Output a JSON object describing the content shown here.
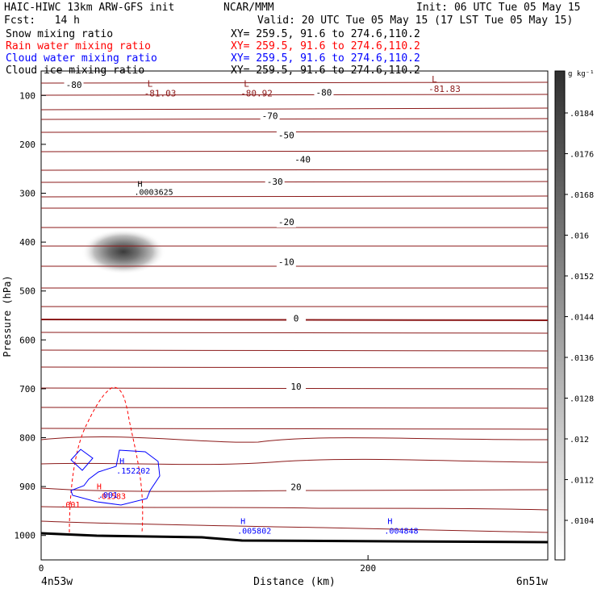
{
  "header": {
    "title": "HAIC-HIWC 13km ARW-GFS init",
    "org": "NCAR/MMM",
    "init": "Init: 06 UTC Tue 05 May 15",
    "fcst": "Fcst:   14 h",
    "valid": "Valid: 20 UTC Tue 05 May 15 (17 LST Tue 05 May 15)",
    "fields": [
      {
        "name": "Snow mixing ratio",
        "xy": "XY= 259.5, 91.6 to 274.6,110.2",
        "color": "#000000"
      },
      {
        "name": "Rain water mixing ratio",
        "xy": "XY= 259.5, 91.6 to 274.6,110.2",
        "color": "#ff0000"
      },
      {
        "name": "Cloud water mixing ratio",
        "xy": "XY= 259.5, 91.6 to 274.6,110.2",
        "color": "#0000ff"
      },
      {
        "name": "Cloud ice mixing ratio",
        "xy": "XY= 259.5, 91.6 to 274.6,110.2",
        "color": "#000000"
      }
    ]
  },
  "chart_data": {
    "type": "cross-section",
    "ylabel": "Pressure (hPa)",
    "xlabel": "Distance (km)",
    "x_left_label": "4n53w",
    "x_right_label": "6n51w",
    "xlim": [
      0,
      310
    ],
    "ylim": [
      1050,
      50
    ],
    "y_ticks": [
      100,
      200,
      300,
      400,
      500,
      600,
      700,
      800,
      900,
      1000
    ],
    "x_ticks": [
      0,
      200
    ],
    "colorbar": {
      "unit": "g kg⁻¹",
      "ticks": [
        ".0184",
        ".0176",
        ".0168",
        ".016",
        ".0152",
        ".0144",
        ".0136",
        ".0128",
        ".012",
        ".0112",
        ".0104"
      ]
    },
    "temperature_contours": {
      "color": "#8b1a1a",
      "labels": [
        {
          "text": "-80",
          "x": 20,
          "p": 85
        },
        {
          "text": "-80",
          "x": 173,
          "p": 100
        },
        {
          "text": "-70",
          "x": 140,
          "p": 148
        },
        {
          "text": "-50",
          "x": 150,
          "p": 188
        },
        {
          "text": "-40",
          "x": 160,
          "p": 237
        },
        {
          "text": "-30",
          "x": 143,
          "p": 283
        },
        {
          "text": "-20",
          "x": 150,
          "p": 365
        },
        {
          "text": "-10",
          "x": 150,
          "p": 447
        },
        {
          "text": "0",
          "x": 156,
          "p": 562
        },
        {
          "text": "10",
          "x": 156,
          "p": 702
        },
        {
          "text": "20",
          "x": 156,
          "p": 907
        }
      ],
      "extrema": [
        {
          "mark": "L",
          "value": "-81.03",
          "x": 65,
          "p": 92
        },
        {
          "mark": "L",
          "value": "-80.92",
          "x": 124,
          "p": 92
        },
        {
          "mark": "L",
          "value": "-81.83",
          "x": 239,
          "p": 83
        }
      ]
    },
    "snow_extrema": [
      {
        "mark": "H",
        "value": ".0003625",
        "x": 57,
        "p": 297
      }
    ],
    "cloud_ice_max": {
      "x": 50,
      "p": 410
    },
    "rain_labels": [
      {
        "mark": "H",
        "value": ".01583",
        "x": 34,
        "p": 912
      },
      {
        "text": ".001",
        "x": 12,
        "p": 943
      }
    ],
    "cloud_water_labels": [
      {
        "mark": "H",
        "value": ".152202",
        "x": 46,
        "p": 860
      },
      {
        "text": ".001",
        "x": 35,
        "p": 923
      },
      {
        "mark": "H",
        "value": ".005802",
        "x": 120,
        "p": 983
      },
      {
        "mark": "H",
        "value": ".004848",
        "x": 210,
        "p": 983
      }
    ]
  }
}
